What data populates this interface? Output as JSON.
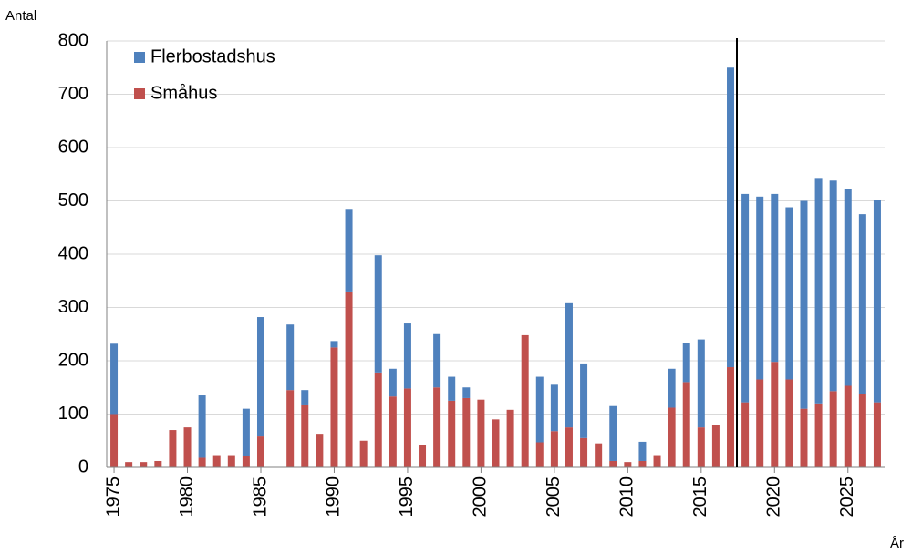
{
  "chart_data": {
    "type": "stacked_bar",
    "y_label": "Antal",
    "x_label": "År",
    "categories": [
      1975,
      null,
      null,
      null,
      null,
      1980,
      null,
      null,
      null,
      null,
      1985,
      null,
      null,
      null,
      null,
      1990,
      null,
      null,
      null,
      null,
      1995,
      null,
      null,
      null,
      null,
      2000,
      null,
      null,
      null,
      null,
      2005,
      null,
      null,
      null,
      null,
      2010,
      null,
      null,
      null,
      null,
      2015,
      null,
      null,
      null,
      null,
      2020,
      null,
      null,
      null,
      null,
      2025,
      null,
      null
    ],
    "series": [
      {
        "name": "Småhus",
        "color": "#c0504d",
        "values": [
          100,
          10,
          10,
          12,
          70,
          75,
          18,
          23,
          23,
          22,
          58,
          0,
          145,
          118,
          63,
          225,
          330,
          50,
          178,
          133,
          148,
          42,
          150,
          125,
          130,
          127,
          90,
          108,
          248,
          47,
          68,
          75,
          55,
          45,
          12,
          10,
          12,
          23,
          112,
          160,
          75,
          80,
          188,
          122,
          165,
          198,
          165,
          110,
          120,
          143,
          153,
          138,
          122
        ]
      },
      {
        "name": "Flerbostadshus",
        "color": "#4f81bd",
        "values": [
          132,
          0,
          0,
          0,
          0,
          0,
          117,
          0,
          0,
          88,
          224,
          0,
          123,
          27,
          0,
          12,
          155,
          0,
          220,
          52,
          122,
          0,
          100,
          45,
          20,
          0,
          0,
          0,
          0,
          123,
          87,
          233,
          140,
          0,
          103,
          0,
          36,
          0,
          73,
          73,
          165,
          0,
          562,
          391,
          343,
          315,
          323,
          390,
          423,
          395,
          370,
          337,
          380
        ]
      }
    ],
    "ylim": [
      0,
      800
    ],
    "yticks": [
      0,
      100,
      200,
      300,
      400,
      500,
      600,
      700,
      800
    ],
    "grid": true,
    "legend": "top-left"
  }
}
